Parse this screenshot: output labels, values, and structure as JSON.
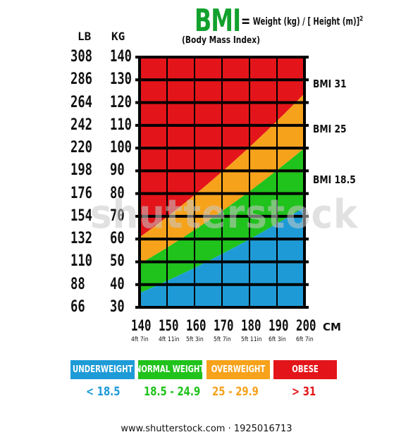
{
  "header": {
    "title": "BMI",
    "formula_lhs": "=",
    "formula_text": "Weight (kg) / [ Height (m)]",
    "formula_exp": "2",
    "subtitle": "(Body Mass Index)"
  },
  "y_axis": {
    "lb_header": "LB",
    "kg_header": "KG",
    "lb_labels": [
      "308",
      "286",
      "264",
      "242",
      "220",
      "198",
      "176",
      "154",
      "132",
      "110",
      "88",
      "66"
    ],
    "kg_labels": [
      "140",
      "130",
      "120",
      "110",
      "100",
      "90",
      "80",
      "70",
      "60",
      "50",
      "40",
      "30"
    ]
  },
  "x_axis": {
    "cm_labels": [
      "140",
      "150",
      "160",
      "170",
      "180",
      "190",
      "200"
    ],
    "ft_labels": [
      "4ft 7in",
      "4ft 11in",
      "5ft 3in",
      "5ft 7in",
      "5ft 11in",
      "6ft 3in",
      "6ft 7in"
    ],
    "unit": "CM"
  },
  "bmi_lines": [
    {
      "label": "BMI 31",
      "bmi": 31
    },
    {
      "label": "BMI 25",
      "bmi": 25
    },
    {
      "label": "BMI 18.5",
      "bmi": 18.5
    }
  ],
  "legend": [
    {
      "label": "UNDERWEIGHT",
      "range": "< 18.5",
      "color": "#1e9bd7"
    },
    {
      "label": "NORMAL WEIGHT",
      "range": "18.5 - 24.9",
      "color": "#20c21c"
    },
    {
      "label": "OVERWEIGHT",
      "range": "25 - 29.9",
      "color": "#f7a21b"
    },
    {
      "label": "OBESE",
      "range": "> 31",
      "color": "#e3151a"
    }
  ],
  "watermark": "shutterstock",
  "footer": "www.shutterstock.com · 1925016713",
  "colors": {
    "underweight": "#1e9bd7",
    "normal": "#20c21c",
    "overweight": "#f7a21b",
    "obese": "#e3151a",
    "grid": "#000000",
    "title": "#12a12d"
  },
  "chart_data": {
    "type": "area",
    "x_unit": "cm",
    "y_unit": "kg",
    "xlim": [
      140,
      200
    ],
    "ylim": [
      30,
      140
    ],
    "x": [
      140,
      150,
      160,
      170,
      180,
      190,
      200
    ],
    "series": [
      {
        "name": "BMI 18.5",
        "bmi": 18.5,
        "values": [
          36.3,
          41.6,
          47.4,
          53.5,
          59.9,
          66.8,
          74.0
        ]
      },
      {
        "name": "BMI 25",
        "bmi": 25,
        "values": [
          49.0,
          56.3,
          64.0,
          72.3,
          81.0,
          90.3,
          100.0
        ]
      },
      {
        "name": "BMI 31",
        "bmi": 31,
        "values": [
          60.8,
          69.8,
          79.4,
          89.6,
          100.4,
          111.9,
          124.0
        ]
      }
    ],
    "regions": [
      {
        "name": "UNDERWEIGHT",
        "range": "< 18.5"
      },
      {
        "name": "NORMAL WEIGHT",
        "range": "18.5 - 24.9"
      },
      {
        "name": "OVERWEIGHT",
        "range": "25 - 29.9"
      },
      {
        "name": "OBESE",
        "range": "> 31"
      }
    ],
    "grid": true
  }
}
